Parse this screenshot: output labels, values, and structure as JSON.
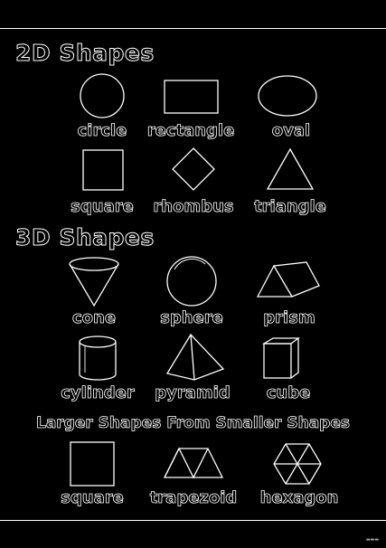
{
  "sections": {
    "two_d": {
      "title": "2D Shapes",
      "labels": [
        "circle",
        "rectangle",
        "oval",
        "square",
        "rhombus",
        "triangle"
      ]
    },
    "three_d": {
      "title": "3D Shapes",
      "labels": [
        "cone",
        "sphere",
        "prism",
        "cylinder",
        "pyramid",
        "cube"
      ]
    },
    "composite": {
      "title": "Larger Shapes From Smaller Shapes",
      "labels": [
        "square",
        "trapezoid",
        "hexagon"
      ]
    }
  },
  "colors": {
    "background": "#000000",
    "line": "#ffffff"
  },
  "icons": [
    "circle-icon",
    "rectangle-icon",
    "oval-icon",
    "square-icon",
    "rhombus-icon",
    "triangle-icon",
    "cone-icon",
    "sphere-icon",
    "prism-icon",
    "cylinder-icon",
    "pyramid-icon",
    "cube-icon",
    "composite-square-icon",
    "trapezoid-icon",
    "hexagon-icon"
  ]
}
